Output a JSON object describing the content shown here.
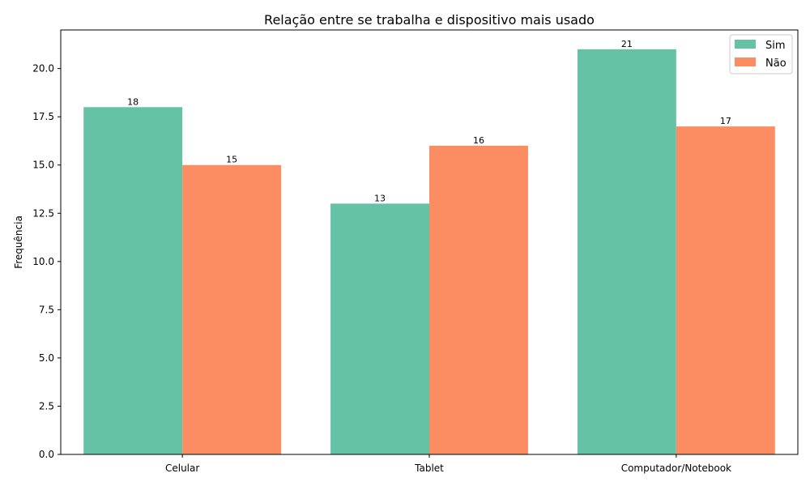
{
  "chart_data": {
    "type": "bar",
    "title": "Relação entre se trabalha e dispositivo mais usado",
    "xlabel": "",
    "ylabel": "Frequência",
    "categories": [
      "Celular",
      "Tablet",
      "Computador/Notebook"
    ],
    "series": [
      {
        "name": "Sim",
        "values": [
          18,
          13,
          21
        ],
        "color": "#66c2a5"
      },
      {
        "name": "Não",
        "values": [
          15,
          16,
          17
        ],
        "color": "#fc8d62"
      }
    ],
    "ylim": [
      0,
      22
    ],
    "yticks": [
      "0.0",
      "2.5",
      "5.0",
      "7.5",
      "10.0",
      "12.5",
      "15.0",
      "17.5",
      "20.0"
    ],
    "grid": false,
    "legend_position": "top-right"
  }
}
